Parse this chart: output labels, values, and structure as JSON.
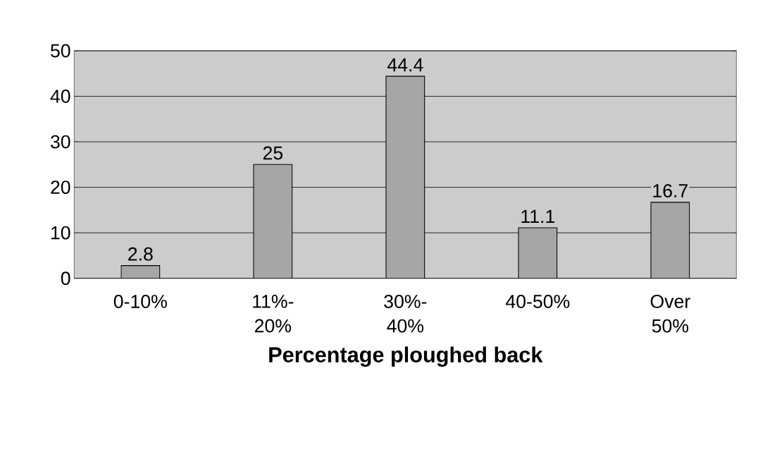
{
  "chart_data": {
    "type": "bar",
    "xlabel": "**Percentage ploughed back**",
    "categories": [
      "0-10%",
      "11%-20%",
      "30%-40%",
      "40-50%",
      "Over 50%"
    ],
    "values": [
      2.8,
      25,
      44.4,
      11.1,
      16.7
    ],
    "color": "#a6a6a6",
    "ylim": [
      0,
      50
    ],
    "yticks": [
      0,
      10,
      20,
      30,
      40,
      50
    ],
    "grid": "y",
    "data_labels": true
  }
}
